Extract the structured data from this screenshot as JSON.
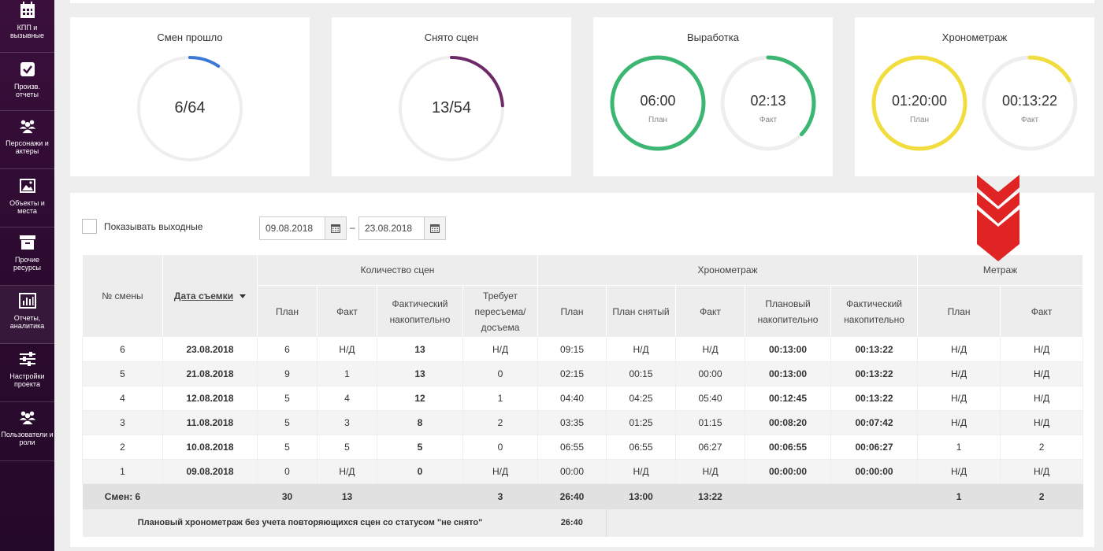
{
  "sidebar": {
    "items": [
      {
        "label": "КПП и\nвызывные",
        "icon": "calendar-icon"
      },
      {
        "label": "Произв.\nотчеты",
        "icon": "checkbox-icon"
      },
      {
        "label": "Персонажи и\nактеры",
        "icon": "people-icon"
      },
      {
        "label": "Объекты и\nместа",
        "icon": "image-icon"
      },
      {
        "label": "Прочие\nресурсы",
        "icon": "archive-icon"
      },
      {
        "label": "Отчеты,\nаналитика",
        "icon": "bar-chart-icon"
      },
      {
        "label": "Настройки\nпроекта",
        "icon": "sliders-icon"
      },
      {
        "label": "Пользователи и\nроли",
        "icon": "people-icon"
      }
    ]
  },
  "stats": {
    "shifts": {
      "title": "Смен прошло",
      "value": "6/64",
      "done": 6,
      "total": 64,
      "color": "#3b79d6"
    },
    "scenes": {
      "title": "Снято сцен",
      "value": "13/54",
      "done": 13,
      "total": 54,
      "color": "#6e2a68"
    },
    "output": {
      "title": "Выработка",
      "plan_value": "06:00",
      "plan_label": "План",
      "fact_value": "02:13",
      "fact_label": "Факт",
      "fact_ratio": 0.369,
      "color": "#3cb673"
    },
    "timing": {
      "title": "Хронометраж",
      "plan_value": "01:20:00",
      "plan_label": "План",
      "fact_value": "00:13:22",
      "fact_label": "Факт",
      "fact_ratio": 0.167,
      "color": "#f1dd3d"
    }
  },
  "filters": {
    "show_weekends_label": "Показывать выходные",
    "date_from": "09.08.2018",
    "date_sep": "–",
    "date_to": "23.08.2018"
  },
  "table": {
    "headers": {
      "shift_no": "№ смены",
      "shoot_date": "Дата съемки",
      "scenes_group": "Количество сцен",
      "timing_group": "Хронометраж",
      "length_group": "Метраж",
      "sc_plan": "План",
      "sc_fact": "Факт",
      "sc_cum": "Фактический накопительно",
      "sc_reshoot": "Требует пересъема/ досъема",
      "t_plan": "План",
      "t_plan_shot": "План снятый",
      "t_fact": "Факт",
      "t_plan_cum": "Плановый накопительно",
      "t_fact_cum": "Фактический накопительно",
      "m_plan": "План",
      "m_fact": "Факт"
    },
    "rows": [
      [
        "6",
        "23.08.2018",
        "6",
        "Н/Д",
        "13",
        "Н/Д",
        "09:15",
        "Н/Д",
        "Н/Д",
        "00:13:00",
        "00:13:22",
        "Н/Д",
        "Н/Д"
      ],
      [
        "5",
        "21.08.2018",
        "9",
        "1",
        "13",
        "0",
        "02:15",
        "00:15",
        "00:00",
        "00:13:00",
        "00:13:22",
        "Н/Д",
        "Н/Д"
      ],
      [
        "4",
        "12.08.2018",
        "5",
        "4",
        "12",
        "1",
        "04:40",
        "04:25",
        "05:40",
        "00:12:45",
        "00:13:22",
        "Н/Д",
        "Н/Д"
      ],
      [
        "3",
        "11.08.2018",
        "5",
        "3",
        "8",
        "2",
        "03:35",
        "01:25",
        "01:15",
        "00:08:20",
        "00:07:42",
        "Н/Д",
        "Н/Д"
      ],
      [
        "2",
        "10.08.2018",
        "5",
        "5",
        "5",
        "0",
        "06:55",
        "06:55",
        "06:27",
        "00:06:55",
        "00:06:27",
        "1",
        "2"
      ],
      [
        "1",
        "09.08.2018",
        "0",
        "Н/Д",
        "0",
        "Н/Д",
        "00:00",
        "Н/Д",
        "Н/Д",
        "00:00:00",
        "00:00:00",
        "Н/Д",
        "Н/Д"
      ]
    ],
    "totals": [
      "Смен: 6",
      "",
      "30",
      "13",
      "",
      "3",
      "26:40",
      "13:00",
      "13:22",
      "",
      "",
      "1",
      "2"
    ],
    "note": {
      "label": "Плановый хронометраж без учета повторяющихся сцен со статусом \"не снято\"",
      "value": "26:40"
    }
  },
  "accent_red": "#e02424"
}
